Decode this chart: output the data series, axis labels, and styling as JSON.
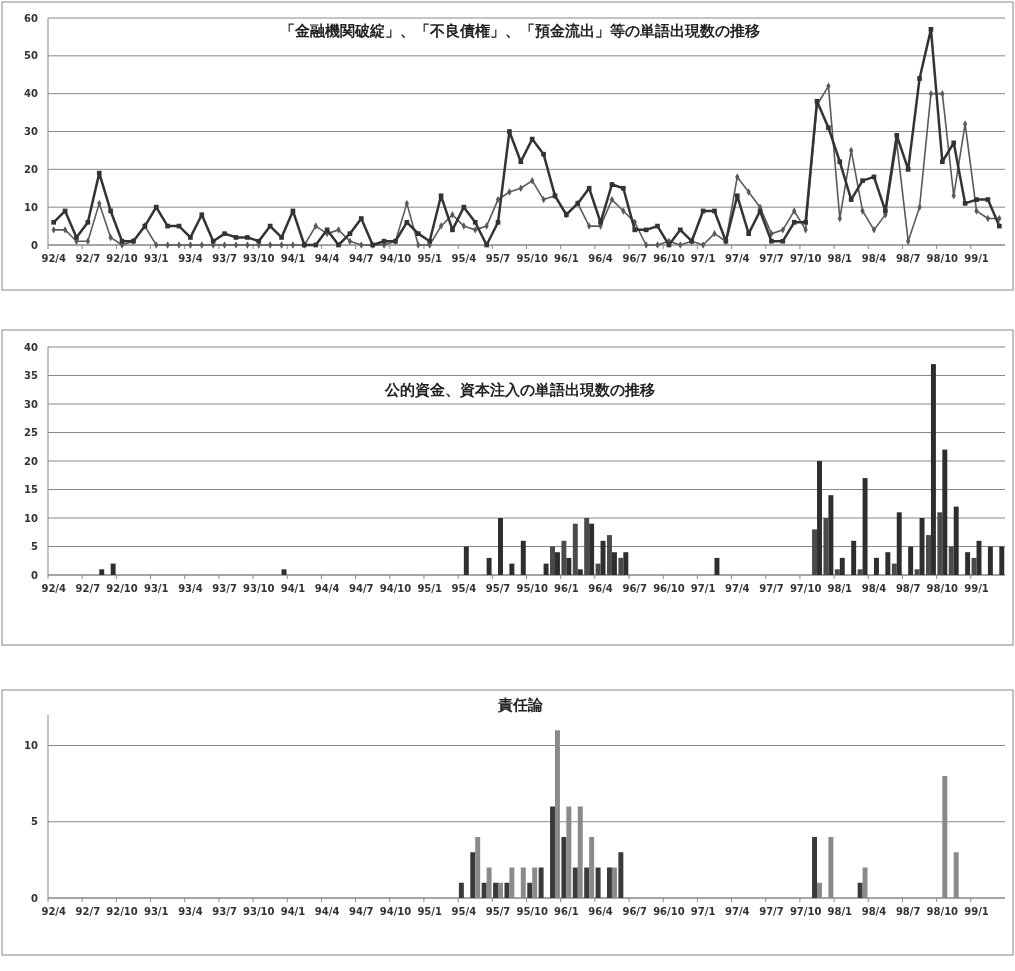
{
  "chart_data": [
    {
      "type": "line",
      "title": "「金融機関破綻」、「不良債権」、「預金流出」等の単語出現数の推移",
      "categories": [
        "92/4",
        null,
        null,
        "92/7",
        null,
        null,
        "92/10",
        null,
        null,
        "93/1",
        null,
        null,
        "93/4",
        null,
        null,
        "93/7",
        null,
        null,
        "93/10",
        null,
        null,
        "94/1",
        null,
        null,
        "94/4",
        null,
        null,
        "94/7",
        null,
        null,
        "94/10",
        null,
        null,
        "95/1",
        null,
        null,
        "95/4",
        null,
        null,
        "95/7",
        null,
        null,
        "95/10",
        null,
        null,
        "96/1",
        null,
        null,
        "96/4",
        null,
        null,
        "96/7",
        null,
        null,
        "96/10",
        null,
        null,
        "97/1",
        null,
        null,
        "97/4",
        null,
        null,
        "97/7",
        null,
        null,
        "97/10",
        null,
        null,
        "98/1",
        null,
        null,
        "98/4",
        null,
        null,
        "98/7",
        null,
        null,
        "98/10",
        null,
        null,
        "99/1",
        null,
        null
      ],
      "series": [
        {
          "color": "#5a5a5a",
          "marker": "diamond",
          "values": [
            4,
            4,
            1,
            1,
            11,
            2,
            0,
            1,
            5,
            0,
            0,
            0,
            0,
            0,
            0,
            0,
            0,
            0,
            0,
            0,
            0,
            0,
            0,
            5,
            3,
            4,
            1,
            0,
            0,
            0,
            1,
            11,
            0,
            0,
            5,
            8,
            5,
            4,
            5,
            12,
            14,
            15,
            17,
            12,
            13,
            8,
            11,
            5,
            5,
            12,
            9,
            6,
            0,
            0,
            1,
            0,
            1,
            0,
            3,
            1,
            18,
            14,
            10,
            3,
            4,
            9,
            4,
            37,
            42,
            7,
            25,
            9,
            4,
            8,
            27,
            1,
            10,
            40,
            40,
            13,
            32,
            9,
            7,
            7
          ]
        },
        {
          "color": "#333333",
          "marker": "square",
          "values": [
            6,
            9,
            2,
            6,
            19,
            9,
            1,
            1,
            5,
            10,
            5,
            5,
            2,
            8,
            1,
            3,
            2,
            2,
            1,
            5,
            2,
            9,
            0,
            0,
            4,
            0,
            3,
            7,
            0,
            1,
            1,
            6,
            3,
            1,
            13,
            4,
            10,
            6,
            0,
            6,
            30,
            22,
            28,
            24,
            13,
            8,
            11,
            15,
            6,
            16,
            15,
            4,
            4,
            5,
            0,
            4,
            1,
            9,
            9,
            1,
            13,
            3,
            9,
            1,
            1,
            6,
            6,
            38,
            31,
            22,
            12,
            17,
            18,
            9,
            29,
            20,
            44,
            57,
            22,
            27,
            11,
            12,
            12,
            5
          ]
        }
      ],
      "ylim": [
        0,
        60
      ],
      "yticks": [
        0,
        10,
        20,
        30,
        40,
        50,
        60
      ],
      "grid": "y"
    },
    {
      "type": "bar",
      "title": "公的資金、資本注入の単語出現数の推移",
      "categories": [
        "92/4",
        null,
        null,
        "92/7",
        null,
        null,
        "92/10",
        null,
        null,
        "93/1",
        null,
        null,
        "93/4",
        null,
        null,
        "93/7",
        null,
        null,
        "93/10",
        null,
        null,
        "94/1",
        null,
        null,
        "94/4",
        null,
        null,
        "94/7",
        null,
        null,
        "94/10",
        null,
        null,
        "95/1",
        null,
        null,
        "95/4",
        null,
        null,
        "95/7",
        null,
        null,
        "95/10",
        null,
        null,
        "96/1",
        null,
        null,
        "96/4",
        null,
        null,
        "96/7",
        null,
        null,
        "96/10",
        null,
        null,
        "97/1",
        null,
        null,
        "97/4",
        null,
        null,
        "97/7",
        null,
        null,
        "97/10",
        null,
        null,
        "98/1",
        null,
        null,
        "98/4",
        null,
        null,
        "98/7",
        null,
        null,
        "98/10",
        null,
        null,
        "99/1",
        null,
        null
      ],
      "series": [
        {
          "color": "#4a4a4a",
          "values": [
            0,
            0,
            0,
            0,
            0,
            0,
            0,
            0,
            0,
            0,
            0,
            0,
            0,
            0,
            0,
            0,
            0,
            0,
            0,
            0,
            0,
            0,
            0,
            0,
            0,
            0,
            0,
            0,
            0,
            0,
            0,
            0,
            0,
            0,
            0,
            0,
            0,
            0,
            0,
            0,
            0,
            0,
            0,
            0,
            5,
            6,
            9,
            10,
            2,
            7,
            3,
            0,
            0,
            0,
            0,
            0,
            0,
            0,
            0,
            0,
            0,
            0,
            0,
            0,
            0,
            0,
            0,
            8,
            10,
            1,
            0,
            1,
            0,
            0,
            2,
            0,
            1,
            7,
            11,
            5,
            0,
            3,
            0,
            0
          ]
        },
        {
          "color": "#2e2e2e",
          "values": [
            0,
            0,
            0,
            0,
            1,
            2,
            0,
            0,
            0,
            0,
            0,
            0,
            0,
            0,
            0,
            0,
            0,
            0,
            0,
            0,
            1,
            0,
            0,
            0,
            0,
            0,
            0,
            0,
            0,
            0,
            0,
            0,
            0,
            0,
            0,
            0,
            5,
            0,
            3,
            10,
            2,
            6,
            0,
            2,
            4,
            3,
            1,
            9,
            6,
            4,
            4,
            0,
            0,
            0,
            0,
            0,
            0,
            0,
            3,
            0,
            0,
            0,
            0,
            0,
            0,
            0,
            0,
            20,
            14,
            3,
            6,
            17,
            3,
            4,
            11,
            5,
            10,
            37,
            22,
            12,
            4,
            6,
            5,
            5
          ]
        }
      ],
      "ylim": [
        0,
        40
      ],
      "yticks": [
        0,
        5,
        10,
        15,
        20,
        25,
        30,
        35,
        40
      ],
      "grid": "y"
    },
    {
      "type": "bar",
      "title": "責任論",
      "categories": [
        "92/4",
        null,
        null,
        "92/7",
        null,
        null,
        "92/10",
        null,
        null,
        "93/1",
        null,
        null,
        "93/4",
        null,
        null,
        "93/7",
        null,
        null,
        "93/10",
        null,
        null,
        "94/1",
        null,
        null,
        "94/4",
        null,
        null,
        "94/7",
        null,
        null,
        "94/10",
        null,
        null,
        "95/1",
        null,
        null,
        "95/4",
        null,
        null,
        "95/7",
        null,
        null,
        "95/10",
        null,
        null,
        "96/1",
        null,
        null,
        "96/4",
        null,
        null,
        "96/7",
        null,
        null,
        "96/10",
        null,
        null,
        "97/1",
        null,
        null,
        "97/4",
        null,
        null,
        "97/7",
        null,
        null,
        "97/10",
        null,
        null,
        "98/1",
        null,
        null,
        "98/4",
        null,
        null,
        "98/7",
        null,
        null,
        "98/10",
        null,
        null,
        "99/1",
        null,
        null
      ],
      "series": [
        {
          "color": "#3a3a3a",
          "values": [
            0,
            0,
            0,
            0,
            0,
            0,
            0,
            0,
            0,
            0,
            0,
            0,
            0,
            0,
            0,
            0,
            0,
            0,
            0,
            0,
            0,
            0,
            0,
            0,
            0,
            0,
            0,
            0,
            0,
            0,
            0,
            0,
            0,
            0,
            0,
            0,
            1,
            3,
            1,
            1,
            1,
            0,
            1,
            2,
            6,
            4,
            2,
            2,
            2,
            2,
            3,
            0,
            0,
            0,
            0,
            0,
            0,
            0,
            0,
            0,
            0,
            0,
            0,
            0,
            0,
            0,
            0,
            4,
            0,
            0,
            0,
            1,
            0,
            0,
            0,
            0,
            0,
            0,
            0,
            0,
            0,
            0,
            0,
            0
          ]
        },
        {
          "color": "#8a8a8a",
          "values": [
            0,
            0,
            0,
            0,
            0,
            0,
            0,
            0,
            0,
            0,
            0,
            0,
            0,
            0,
            0,
            0,
            0,
            0,
            0,
            0,
            0,
            0,
            0,
            0,
            0,
            0,
            0,
            0,
            0,
            0,
            0,
            0,
            0,
            0,
            0,
            0,
            0,
            4,
            2,
            1,
            2,
            2,
            2,
            0,
            11,
            6,
            6,
            4,
            0,
            2,
            0,
            0,
            0,
            0,
            0,
            0,
            0,
            0,
            0,
            0,
            0,
            0,
            0,
            0,
            0,
            0,
            0,
            1,
            4,
            0,
            0,
            2,
            0,
            0,
            0,
            0,
            0,
            0,
            8,
            3,
            0,
            0,
            0,
            0
          ]
        }
      ],
      "ylim": [
        0,
        12
      ],
      "yticks": [
        0,
        5,
        10
      ],
      "grid": "y"
    }
  ]
}
